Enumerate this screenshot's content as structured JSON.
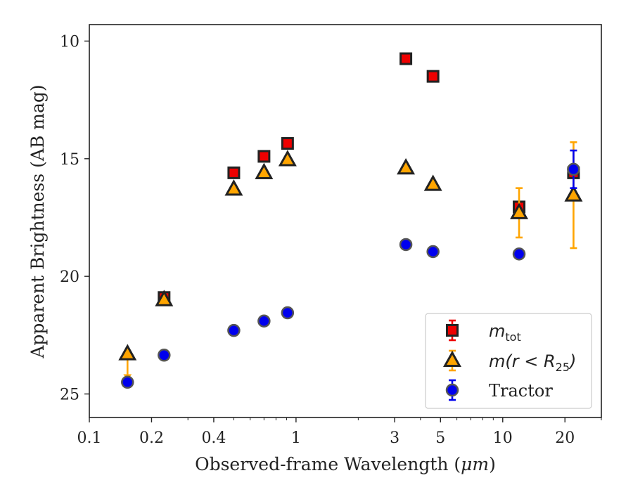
{
  "chart_data": {
    "type": "scatter",
    "xlabel_prefix": "Observed-frame Wavelength (",
    "xlabel_unit": "μm",
    "xlabel_suffix": ")",
    "ylabel": "Apparent Brightness (AB mag)",
    "xscale": "log",
    "xlim": [
      0.1,
      30
    ],
    "ylim": [
      26,
      9.3
    ],
    "y_inverted": true,
    "x_ticks": [
      0.1,
      0.2,
      0.4,
      1,
      3,
      5,
      10,
      20
    ],
    "x_tick_labels": [
      "0.1",
      "0.2",
      "0.4",
      "1",
      "3",
      "5",
      "10",
      "20"
    ],
    "y_ticks": [
      10,
      15,
      20,
      25
    ],
    "y_tick_labels": [
      "10",
      "15",
      "20",
      "25"
    ],
    "legend_position": "lower right",
    "series": [
      {
        "key": "mtot",
        "label_main": "m",
        "label_sub": "tot",
        "marker": "square",
        "color": "#ee0000",
        "edge": "#222222",
        "errorbar_color": "#ee0000",
        "points": [
          {
            "x": 0.23,
            "y": 20.9,
            "err": 0.1
          },
          {
            "x": 0.5,
            "y": 15.6,
            "err": 0.05
          },
          {
            "x": 0.7,
            "y": 14.9,
            "err": 0.05
          },
          {
            "x": 0.91,
            "y": 14.35,
            "err": 0.05
          },
          {
            "x": 3.4,
            "y": 10.75,
            "err": 0.05
          },
          {
            "x": 4.6,
            "y": 11.5,
            "err": 0.05
          },
          {
            "x": 12.0,
            "y": 17.05,
            "err": 0.1
          },
          {
            "x": 22.0,
            "y": 15.6,
            "err": 0.15
          }
        ]
      },
      {
        "key": "mr25",
        "label_main": "m(r < R",
        "label_sub": "25",
        "label_close": ")",
        "marker": "triangle",
        "color": "#ffa500",
        "edge": "#222222",
        "errorbar_color": "#ffa500",
        "points": [
          {
            "x": 0.153,
            "y": 23.3,
            "upper_limit": true,
            "arrow_to": 24.4
          },
          {
            "x": 0.23,
            "y": 21.0,
            "err": 0.1
          },
          {
            "x": 0.5,
            "y": 16.3,
            "err": 0.05
          },
          {
            "x": 0.7,
            "y": 15.6,
            "err": 0.05
          },
          {
            "x": 0.91,
            "y": 15.05,
            "err": 0.05
          },
          {
            "x": 3.4,
            "y": 15.4,
            "err": 0.05
          },
          {
            "x": 4.6,
            "y": 16.1,
            "err": 0.05
          },
          {
            "x": 12.0,
            "y": 17.3,
            "err": 1.05
          },
          {
            "x": 22.0,
            "y": 16.55,
            "err": 2.25
          }
        ]
      },
      {
        "key": "tractor",
        "label_main": "Tractor",
        "marker": "circle",
        "color": "#0000ee",
        "edge": "#555555",
        "errorbar_color": "#0000ee",
        "points": [
          {
            "x": 0.153,
            "y": 24.5,
            "err": 0.05
          },
          {
            "x": 0.23,
            "y": 23.35,
            "err": 0.05
          },
          {
            "x": 0.5,
            "y": 22.3,
            "err": 0.05
          },
          {
            "x": 0.7,
            "y": 21.9,
            "err": 0.05
          },
          {
            "x": 0.91,
            "y": 21.55,
            "err": 0.05
          },
          {
            "x": 3.4,
            "y": 18.65,
            "err": 0.05
          },
          {
            "x": 4.6,
            "y": 18.95,
            "err": 0.05
          },
          {
            "x": 12.0,
            "y": 19.05,
            "err": 0.05
          },
          {
            "x": 22.0,
            "y": 15.45,
            "err": 0.8
          }
        ]
      }
    ]
  }
}
